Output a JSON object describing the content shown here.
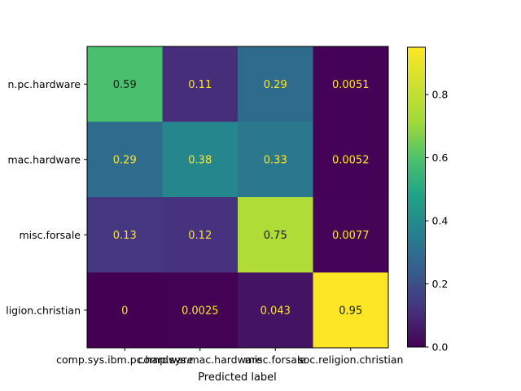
{
  "chart_data": {
    "type": "heatmap",
    "title": "",
    "xlabel": "Predicted label",
    "ylabel": "",
    "x_categories": [
      "comp.sys.ibm.pc.hardware",
      "comp.sys.mac.hardware",
      "misc.forsale",
      "soc.religion.christian"
    ],
    "y_categories": [
      "comp.sys.ibm.pc.hardware",
      "comp.sys.mac.hardware",
      "misc.forsale",
      "soc.religion.christian"
    ],
    "y_tick_labels_visible": [
      "n.pc.hardware",
      "mac.hardware",
      "misc.forsale",
      "ligion.christian"
    ],
    "values": [
      [
        0.59,
        0.11,
        0.29,
        0.0051
      ],
      [
        0.29,
        0.38,
        0.33,
        0.0052
      ],
      [
        0.13,
        0.12,
        0.75,
        0.0077
      ],
      [
        0,
        0.0025,
        0.043,
        0.95
      ]
    ],
    "value_labels": [
      [
        "0.59",
        "0.11",
        "0.29",
        "0.0051"
      ],
      [
        "0.29",
        "0.38",
        "0.33",
        "0.0052"
      ],
      [
        "0.13",
        "0.12",
        "0.75",
        "0.0077"
      ],
      [
        "0",
        "0.0025",
        "0.043",
        "0.95"
      ]
    ],
    "colormap": "viridis",
    "colorbar": {
      "range": [
        0,
        0.95
      ],
      "ticks": [
        0.0,
        0.2,
        0.4,
        0.6,
        0.8
      ],
      "tick_labels": [
        "0.0",
        "0.2",
        "0.4",
        "0.6",
        "0.8"
      ]
    },
    "grid": false
  }
}
